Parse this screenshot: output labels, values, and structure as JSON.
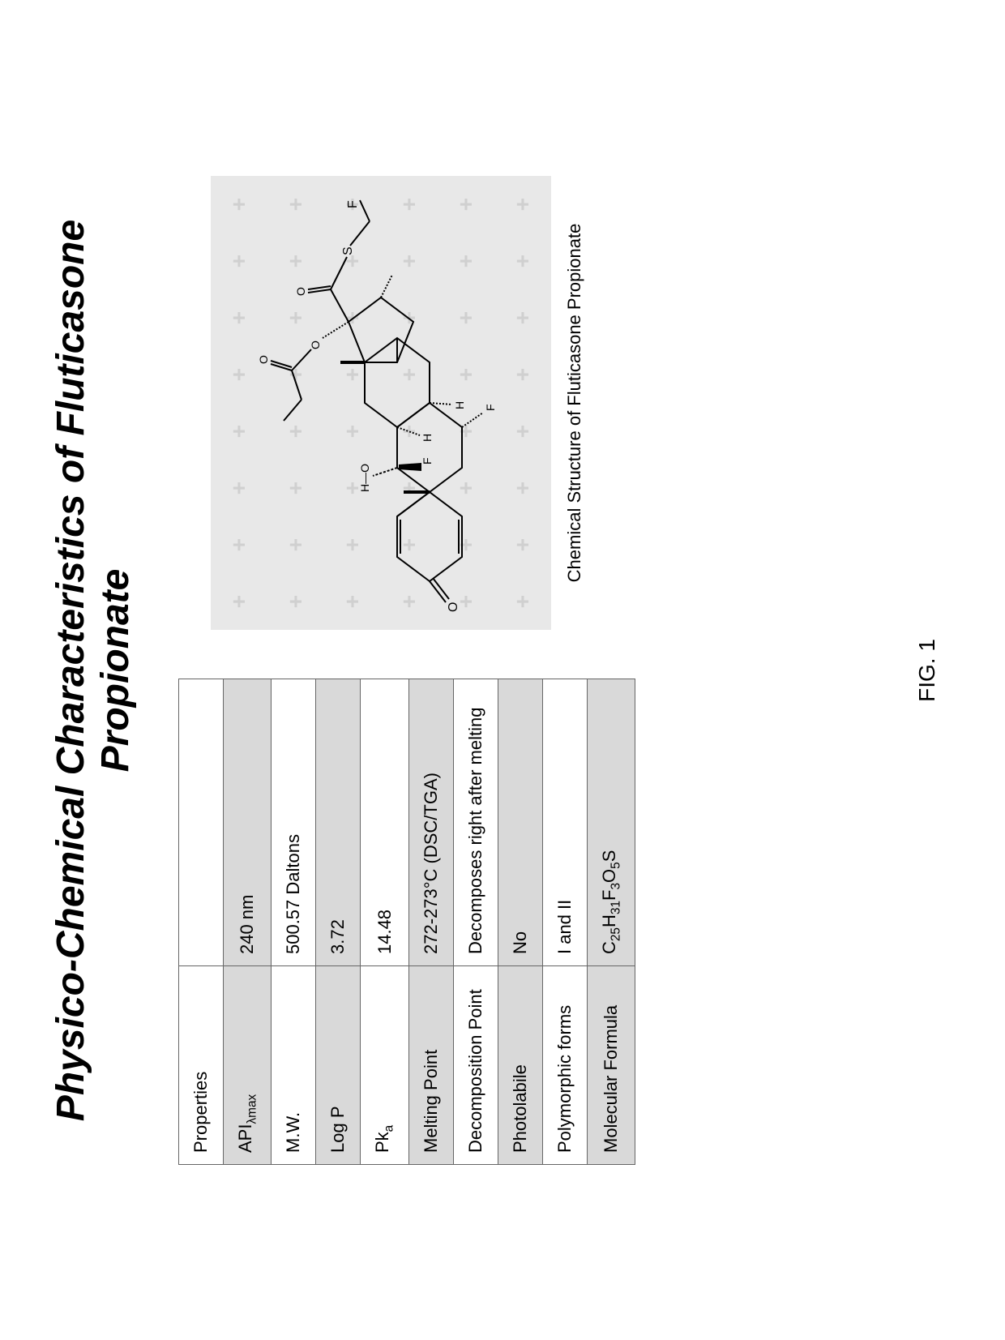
{
  "title": "Physico-Chemical Characteristics of Fluticasone Propionate",
  "table": {
    "header": {
      "col1": "Properties",
      "col2": ""
    },
    "rows": [
      {
        "prop": "APIλmax",
        "val": "240 nm",
        "shaded": true
      },
      {
        "prop": "M.W.",
        "val": "500.57 Daltons",
        "shaded": false
      },
      {
        "prop": "Log P",
        "val": "3.72",
        "shaded": true
      },
      {
        "prop": "Pkₐ",
        "val": "14.48",
        "shaded": false
      },
      {
        "prop": "Melting Point",
        "val": "272-273°C (DSC/TGA)",
        "shaded": true
      },
      {
        "prop": "Decomposition Point",
        "val": "Decomposes right after melting",
        "shaded": false
      },
      {
        "prop": "Photolabile",
        "val": "No",
        "shaded": true
      },
      {
        "prop": "Polymorphic forms",
        "val": "I and II",
        "shaded": false
      },
      {
        "prop": "Molecular Formula",
        "val": "C₂₅H₃₁F₃O₅S",
        "shaded": true
      }
    ]
  },
  "structure_caption": "Chemical Structure of Fluticasone Propionate",
  "figure_label": "FIG. 1",
  "molecule": {
    "atoms": {
      "O_ketone": "O",
      "HO": "H—O",
      "F1": "F",
      "H1": "H",
      "H2": "H",
      "F2": "F",
      "S": "S",
      "F3": "F",
      "O_ester1": "O",
      "O_ester2": "O"
    }
  },
  "colors": {
    "bg": "#ffffff",
    "table_border": "#666666",
    "shaded_row": "#d9d9d9",
    "structure_bg": "#e8e8e8",
    "watermark_plus": "#d0d0d0",
    "text": "#000000"
  }
}
